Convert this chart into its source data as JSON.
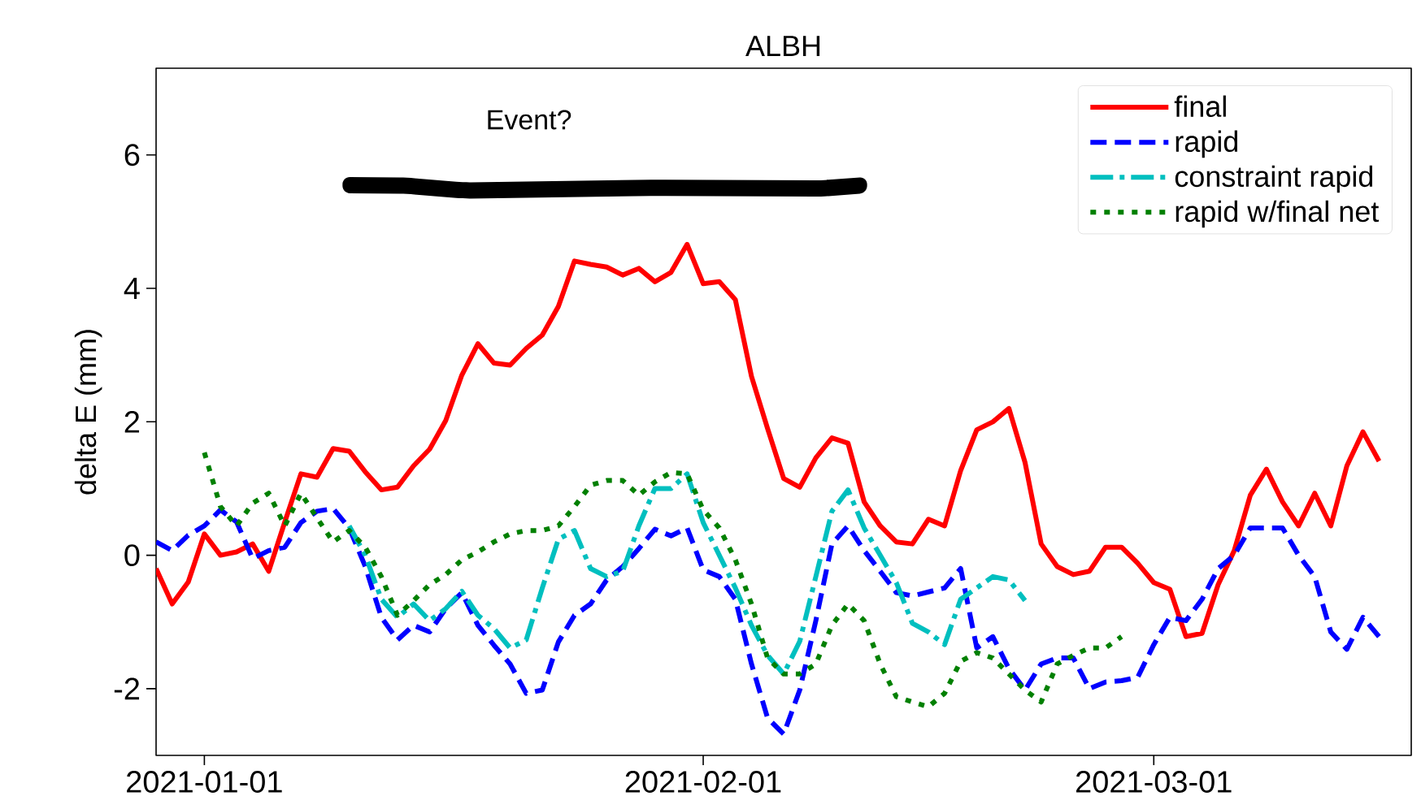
{
  "chart_data": {
    "type": "line",
    "title": "ALBH",
    "ylabel": "delta E (mm)",
    "x": [
      "2020-12-29",
      "2020-12-30",
      "2020-12-31",
      "2021-01-01",
      "2021-01-02",
      "2021-01-03",
      "2021-01-04",
      "2021-01-05",
      "2021-01-06",
      "2021-01-07",
      "2021-01-08",
      "2021-01-09",
      "2021-01-10",
      "2021-01-11",
      "2021-01-12",
      "2021-01-13",
      "2021-01-14",
      "2021-01-15",
      "2021-01-16",
      "2021-01-17",
      "2021-01-18",
      "2021-01-19",
      "2021-01-20",
      "2021-01-21",
      "2021-01-22",
      "2021-01-23",
      "2021-01-24",
      "2021-01-25",
      "2021-01-26",
      "2021-01-27",
      "2021-01-28",
      "2021-01-29",
      "2021-01-30",
      "2021-01-31",
      "2021-02-01",
      "2021-02-02",
      "2021-02-03",
      "2021-02-04",
      "2021-02-05",
      "2021-02-06",
      "2021-02-07",
      "2021-02-08",
      "2021-02-09",
      "2021-02-10",
      "2021-02-11",
      "2021-02-12",
      "2021-02-13",
      "2021-02-14",
      "2021-02-15",
      "2021-02-16",
      "2021-02-17",
      "2021-02-18",
      "2021-02-19",
      "2021-02-20",
      "2021-02-21",
      "2021-02-22",
      "2021-02-23",
      "2021-02-24",
      "2021-02-25",
      "2021-02-26",
      "2021-02-27",
      "2021-02-28",
      "2021-03-01",
      "2021-03-02",
      "2021-03-03",
      "2021-03-04",
      "2021-03-05",
      "2021-03-06",
      "2021-03-07",
      "2021-03-08",
      "2021-03-09",
      "2021-03-10",
      "2021-03-11",
      "2021-03-12",
      "2021-03-13",
      "2021-03-14",
      "2021-03-15"
    ],
    "series": [
      {
        "name": "final",
        "color": "#ff0000",
        "line_style": "solid",
        "values": [
          -0.2,
          -0.73,
          -0.4,
          0.32,
          0,
          0.05,
          0.17,
          -0.24,
          0.5,
          1.22,
          1.17,
          1.6,
          1.56,
          1.25,
          0.98,
          1.02,
          1.34,
          1.59,
          2.02,
          2.7,
          3.17,
          2.88,
          2.85,
          3.1,
          3.3,
          3.73,
          4.41,
          4.36,
          4.32,
          4.2,
          4.3,
          4.1,
          4.24,
          4.66,
          4.07,
          4.1,
          3.83,
          2.68,
          1.9,
          1.15,
          1.02,
          1.46,
          1.76,
          1.68,
          0.8,
          0.44,
          0.2,
          0.17,
          0.54,
          0.44,
          1.27,
          1.88,
          2.0,
          2.2,
          1.39,
          0.17,
          -0.17,
          -0.29,
          -0.24,
          0.12,
          0.12,
          -0.12,
          -0.41,
          -0.51,
          -1.22,
          -1.17,
          -0.44,
          0.07,
          0.9,
          1.29,
          0.8,
          0.44,
          0.93,
          0.44,
          1.34,
          1.85,
          1.41
        ]
      },
      {
        "name": "rapid",
        "color": "#0000ff",
        "line_style": "dashed",
        "values": [
          0.2,
          0.07,
          0.3,
          0.44,
          0.68,
          0.5,
          -0.05,
          0.07,
          0.12,
          0.49,
          0.66,
          0.7,
          0.41,
          -0.17,
          -0.93,
          -1.27,
          -1.05,
          -1.15,
          -0.8,
          -0.56,
          -1.05,
          -1.35,
          -1.63,
          -2.07,
          -2.02,
          -1.3,
          -0.9,
          -0.73,
          -0.37,
          -0.17,
          0.1,
          0.39,
          0.29,
          0.41,
          -0.22,
          -0.32,
          -0.66,
          -1.63,
          -2.44,
          -2.68,
          -2.02,
          -0.98,
          0.17,
          0.44,
          0.07,
          -0.24,
          -0.56,
          -0.61,
          -0.55,
          -0.49,
          -0.2,
          -1.39,
          -1.22,
          -1.7,
          -2.02,
          -1.63,
          -1.54,
          -1.54,
          -2.0,
          -1.9,
          -1.88,
          -1.83,
          -1.34,
          -0.93,
          -0.98,
          -0.66,
          -0.2,
          0,
          0.41,
          0.41,
          0.41,
          0,
          -0.32,
          -1.15,
          -1.41,
          -0.93,
          -1.22
        ]
      },
      {
        "name": "constraint rapid",
        "color": "#00bfbf",
        "line_style": "dashdot",
        "values": [
          null,
          null,
          null,
          null,
          null,
          null,
          null,
          null,
          null,
          null,
          null,
          null,
          0.44,
          0,
          -0.66,
          -0.93,
          -0.73,
          -0.98,
          -0.8,
          -0.54,
          -0.9,
          -1.1,
          -1.39,
          -1.27,
          -0.49,
          0.24,
          0.37,
          -0.2,
          -0.32,
          -0.24,
          0.44,
          1.0,
          1.0,
          1.22,
          0.49,
          0,
          -0.49,
          -1.05,
          -1.5,
          -1.78,
          -1.29,
          -0.32,
          0.66,
          0.98,
          0.41,
          0,
          -0.41,
          -1.02,
          -1.15,
          -1.34,
          -0.66,
          -0.49,
          -0.32,
          -0.37,
          -0.68,
          null,
          null,
          null,
          null,
          null,
          null,
          null,
          null,
          null,
          null,
          null,
          null,
          null,
          null,
          null,
          null,
          null,
          null,
          null,
          null,
          null,
          null
        ]
      },
      {
        "name": "rapid w/final net",
        "color": "#008000",
        "line_style": "dotted",
        "values": [
          null,
          null,
          null,
          1.54,
          0.73,
          0.44,
          0.78,
          0.93,
          0.44,
          0.93,
          0.56,
          0.2,
          0.37,
          0.12,
          -0.32,
          -0.9,
          -0.68,
          -0.44,
          -0.29,
          -0.07,
          0.05,
          0.2,
          0.32,
          0.37,
          0.37,
          0.44,
          0.73,
          1.05,
          1.12,
          1.12,
          0.9,
          1.1,
          1.24,
          1.22,
          0.68,
          0.41,
          -0.07,
          -0.73,
          -1.54,
          -1.78,
          -1.78,
          -1.63,
          -1.05,
          -0.73,
          -0.98,
          -1.63,
          -2.12,
          -2.2,
          -2.27,
          -2.07,
          -1.59,
          -1.46,
          -1.54,
          -1.78,
          -2.02,
          -2.2,
          -1.63,
          -1.5,
          -1.39,
          -1.39,
          -1.22,
          null,
          null,
          null,
          null,
          null,
          null,
          null,
          null,
          null,
          null,
          null,
          null,
          null,
          null,
          null,
          null
        ]
      }
    ],
    "xlim": [
      "2020-12-29",
      "2021-03-17"
    ],
    "xticks": [
      "2021-01-01",
      "2021-02-01",
      "2021-03-01"
    ],
    "ylim": [
      -3,
      7.3
    ],
    "yticks": [
      -2,
      0,
      2,
      4,
      6
    ],
    "annotations": [
      "Event?"
    ],
    "legend": "top right",
    "grid": false
  }
}
